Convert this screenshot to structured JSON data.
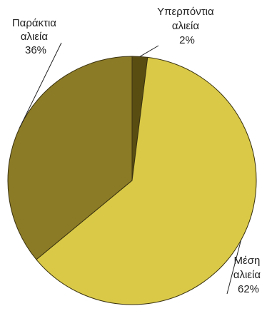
{
  "chart_data": {
    "type": "pie",
    "title": "",
    "start": "12 o'clock",
    "direction": "clockwise",
    "slices": [
      {
        "label_lines": [
          "Υπερπόντια",
          "αλιεία"
        ],
        "value": 2,
        "value_label": "2%",
        "color": "#5a4d12"
      },
      {
        "label_lines": [
          "Μέση",
          "αλιεία"
        ],
        "value": 62,
        "value_label": "62%",
        "color": "#d9c947"
      },
      {
        "label_lines": [
          "Παράκτια",
          "αλιεία"
        ],
        "value": 36,
        "value_label": "36%",
        "color": "#8c7b26"
      }
    ],
    "slice_border_color": "#3a3210"
  }
}
